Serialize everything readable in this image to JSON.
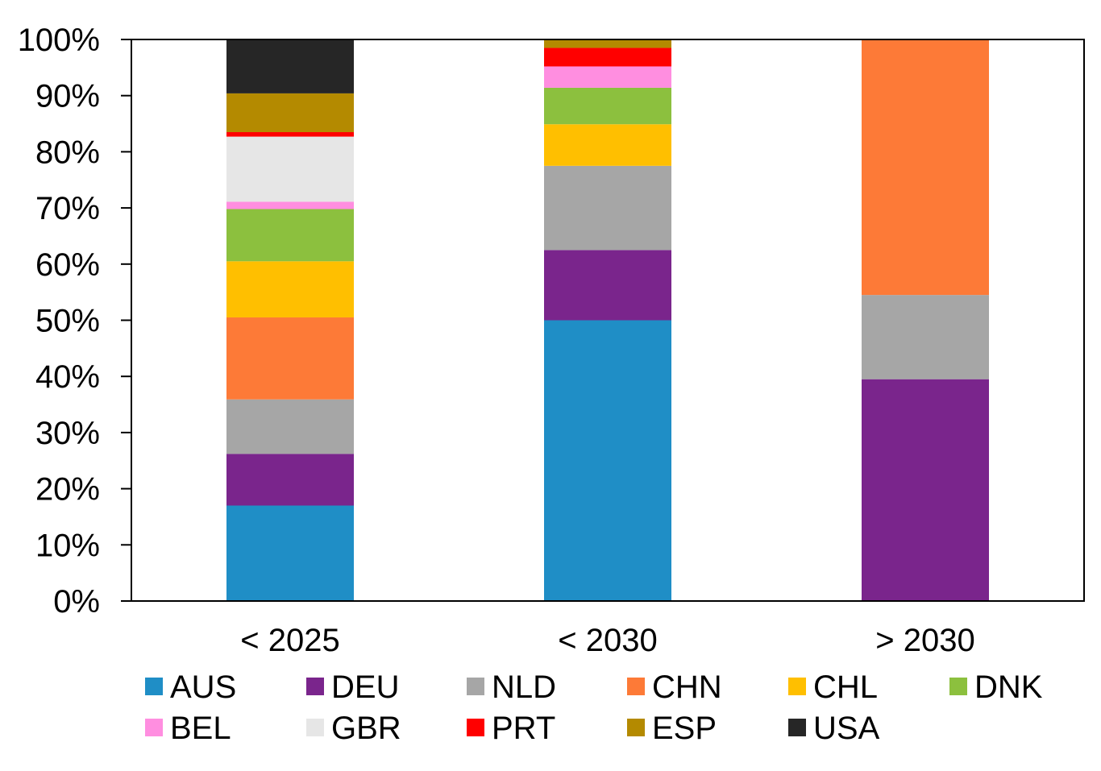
{
  "chart_data": {
    "type": "bar",
    "stacked": true,
    "title": "",
    "xlabel": "",
    "ylabel": "",
    "ylim": [
      0,
      100
    ],
    "y_ticks": [
      "0%",
      "10%",
      "20%",
      "30%",
      "40%",
      "50%",
      "60%",
      "70%",
      "80%",
      "90%",
      "100%"
    ],
    "categories": [
      "< 2025",
      "< 2030",
      "> 2030"
    ],
    "legend_position": "bottom",
    "series": [
      {
        "name": "AUS",
        "color": "#1f8ec6",
        "values": [
          17,
          50,
          0
        ]
      },
      {
        "name": "DEU",
        "color": "#7a258c",
        "values": [
          9.2,
          12.5,
          39.5
        ]
      },
      {
        "name": "NLD",
        "color": "#a6a6a6",
        "values": [
          9.7,
          15,
          15
        ]
      },
      {
        "name": "CHN",
        "color": "#fd7a37",
        "values": [
          14.6,
          0,
          45.5
        ]
      },
      {
        "name": "CHL",
        "color": "#ffbf00",
        "values": [
          10,
          7.4,
          0
        ]
      },
      {
        "name": "DNK",
        "color": "#8cc03e",
        "values": [
          9.3,
          6.5,
          0
        ]
      },
      {
        "name": "BEL",
        "color": "#ff8ee0",
        "values": [
          1.3,
          3.8,
          0
        ]
      },
      {
        "name": "GBR",
        "color": "#e6e6e6",
        "values": [
          11.6,
          0,
          0
        ]
      },
      {
        "name": "PRT",
        "color": "#ff0000",
        "values": [
          0.8,
          3.3,
          0
        ]
      },
      {
        "name": "ESP",
        "color": "#b48a00",
        "values": [
          6.9,
          1.5,
          0
        ]
      },
      {
        "name": "USA",
        "color": "#262626",
        "values": [
          9.6,
          0,
          0
        ]
      }
    ]
  }
}
